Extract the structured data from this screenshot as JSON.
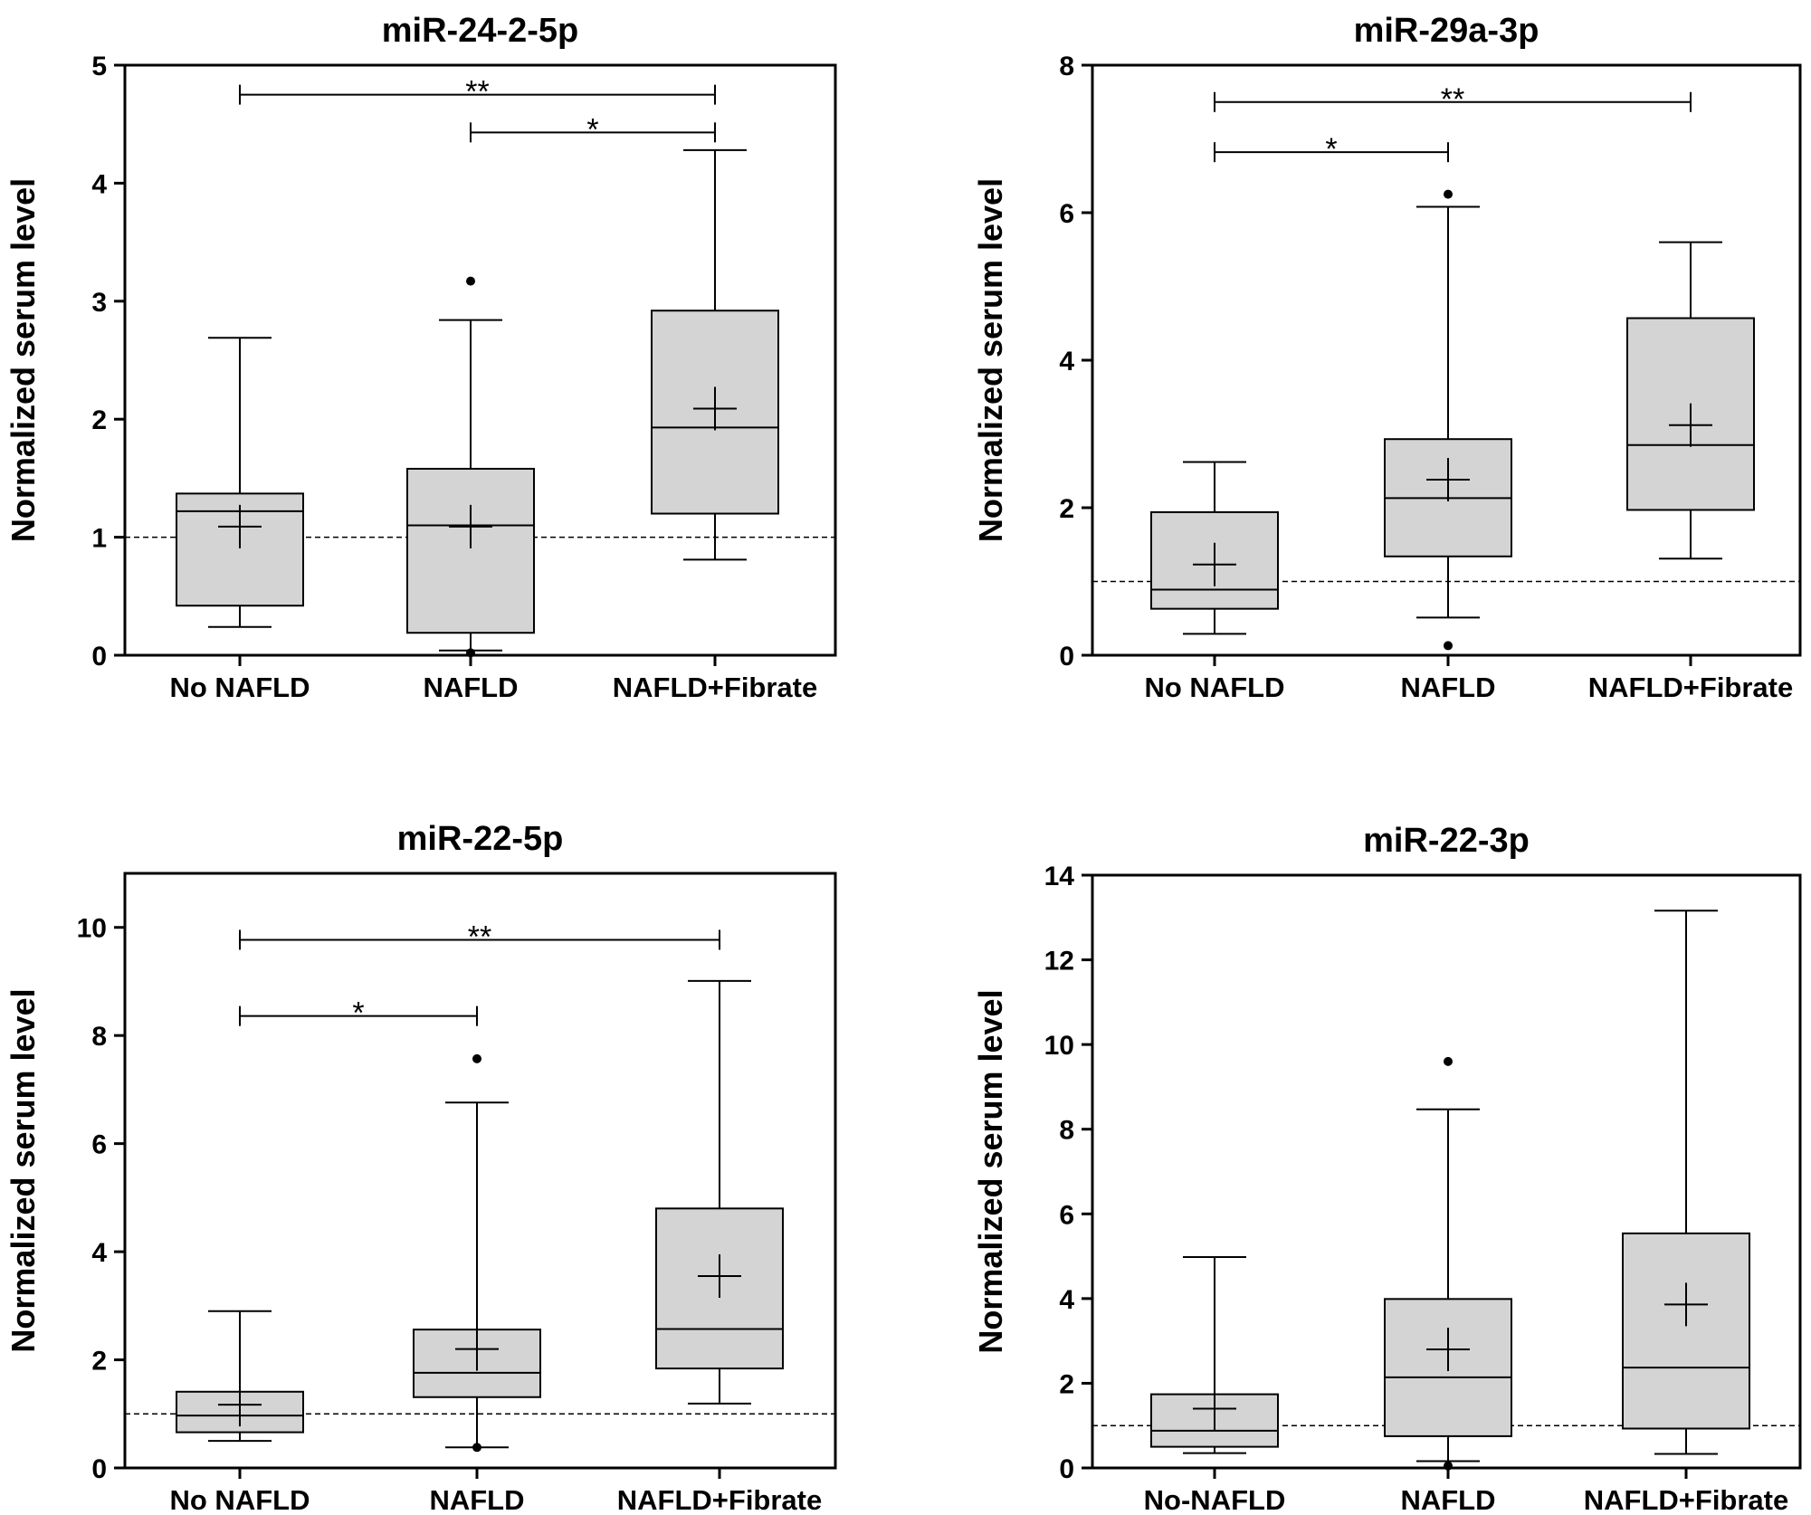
{
  "chart_data": [
    {
      "type": "box",
      "title": "miR-24-2-5p",
      "ylabel": "Normalized serum level",
      "xlabel": "",
      "ylim": [
        0,
        5
      ],
      "yticks": [
        "0",
        "1",
        "2",
        "3",
        "4",
        "5"
      ],
      "reference_line": 1,
      "categories": [
        "No NAFLD",
        "NAFLD",
        "NAFLD+Fibrate"
      ],
      "boxes": [
        {
          "group": "No NAFLD",
          "whisker_low": 0.24,
          "q1": 0.42,
          "median": 1.22,
          "q3": 1.37,
          "whisker_high": 2.69,
          "mean": 1.09,
          "outliers": []
        },
        {
          "group": "NAFLD",
          "whisker_low": 0.04,
          "q1": 0.19,
          "median": 1.1,
          "q3": 1.58,
          "whisker_high": 2.84,
          "mean": 1.09,
          "outliers": [
            3.17,
            0.02
          ]
        },
        {
          "group": "NAFLD+Fibrate",
          "whisker_low": 0.81,
          "q1": 1.2,
          "median": 1.93,
          "q3": 2.92,
          "whisker_high": 4.28,
          "mean": 2.09,
          "outliers": []
        }
      ],
      "significance": [
        {
          "from": "NAFLD",
          "to": "NAFLD+Fibrate",
          "label": "*",
          "y": 4.43
        },
        {
          "from": "No NAFLD",
          "to": "NAFLD+Fibrate",
          "label": "**",
          "y": 4.75
        }
      ]
    },
    {
      "type": "box",
      "title": "miR-29a-3p",
      "ylabel": "Normalized serum level",
      "xlabel": "",
      "ylim": [
        0,
        8
      ],
      "yticks": [
        "0",
        "2",
        "4",
        "6",
        "8"
      ],
      "reference_line": 1,
      "categories": [
        "No NAFLD",
        "NAFLD",
        "NAFLD+Fibrate"
      ],
      "boxes": [
        {
          "group": "No NAFLD",
          "whisker_low": 0.29,
          "q1": 0.63,
          "median": 0.89,
          "q3": 1.94,
          "whisker_high": 2.62,
          "mean": 1.23,
          "outliers": []
        },
        {
          "group": "NAFLD",
          "whisker_low": 0.51,
          "q1": 1.34,
          "median": 2.13,
          "q3": 2.93,
          "whisker_high": 6.08,
          "mean": 2.38,
          "outliers": [
            6.25,
            0.13
          ]
        },
        {
          "group": "NAFLD+Fibrate",
          "whisker_low": 1.31,
          "q1": 1.97,
          "median": 2.85,
          "q3": 4.57,
          "whisker_high": 5.6,
          "mean": 3.12,
          "outliers": []
        }
      ],
      "significance": [
        {
          "from": "No NAFLD",
          "to": "NAFLD",
          "label": "*",
          "y": 6.82
        },
        {
          "from": "No NAFLD",
          "to": "NAFLD+Fibrate",
          "label": "**",
          "y": 7.5
        }
      ]
    },
    {
      "type": "box",
      "title": "miR-22-5p",
      "ylabel": "Normalized serum level",
      "xlabel": "",
      "ylim": [
        0,
        11
      ],
      "yticks": [
        "0",
        "2",
        "4",
        "6",
        "8",
        "10"
      ],
      "reference_line": 1,
      "categories": [
        "No NAFLD",
        "NAFLD",
        "NAFLD+Fibrate"
      ],
      "boxes": [
        {
          "group": "No NAFLD",
          "whisker_low": 0.5,
          "q1": 0.66,
          "median": 0.97,
          "q3": 1.41,
          "whisker_high": 2.9,
          "mean": 1.17,
          "outliers": []
        },
        {
          "group": "NAFLD",
          "whisker_low": 0.38,
          "q1": 1.31,
          "median": 1.76,
          "q3": 2.56,
          "whisker_high": 6.76,
          "mean": 2.2,
          "outliers": [
            7.57,
            0.38
          ]
        },
        {
          "group": "NAFLD+Fibrate",
          "whisker_low": 1.19,
          "q1": 1.84,
          "median": 2.57,
          "q3": 4.8,
          "whisker_high": 9.01,
          "mean": 3.55,
          "outliers": []
        }
      ],
      "significance": [
        {
          "from": "No NAFLD",
          "to": "NAFLD",
          "label": "*",
          "y": 8.36
        },
        {
          "from": "No NAFLD",
          "to": "NAFLD+Fibrate",
          "label": "**",
          "y": 9.77
        }
      ]
    },
    {
      "type": "box",
      "title": "miR-22-3p",
      "ylabel": "Normalized serum level",
      "xlabel": "",
      "ylim": [
        0,
        14
      ],
      "yticks": [
        "0",
        "2",
        "4",
        "6",
        "8",
        "10",
        "12",
        "14"
      ],
      "reference_line": 1,
      "categories": [
        "No-NAFLD",
        "NAFLD",
        "NAFLD+Fibrate"
      ],
      "boxes": [
        {
          "group": "No-NAFLD",
          "whisker_low": 0.35,
          "q1": 0.5,
          "median": 0.88,
          "q3": 1.74,
          "whisker_high": 4.98,
          "mean": 1.4,
          "outliers": []
        },
        {
          "group": "NAFLD",
          "whisker_low": 0.16,
          "q1": 0.75,
          "median": 2.14,
          "q3": 3.99,
          "whisker_high": 8.47,
          "mean": 2.8,
          "outliers": [
            9.6,
            0.05
          ]
        },
        {
          "group": "NAFLD+Fibrate",
          "whisker_low": 0.33,
          "q1": 0.93,
          "median": 2.37,
          "q3": 5.54,
          "whisker_high": 13.16,
          "mean": 3.86,
          "outliers": []
        }
      ],
      "significance": []
    }
  ]
}
